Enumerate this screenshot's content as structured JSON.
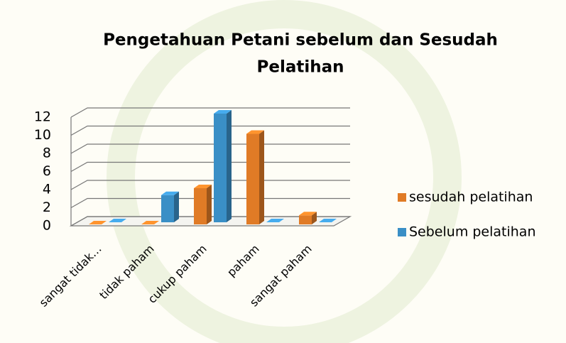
{
  "chart_data": {
    "type": "bar3d",
    "title": "Pengetahuan Petani sebelum dan Sesudah",
    "title_line2": "Pelatihan",
    "categories": [
      "sangat tidak…",
      "tidak paham",
      "cukup paham",
      "paham",
      "sangat paham"
    ],
    "series": [
      {
        "name": "sesudah pelatihan",
        "color": "#e07b26",
        "values": [
          0,
          0,
          4,
          10,
          1
        ]
      },
      {
        "name": "Sebelum pelatihan",
        "color": "#3a8fc6",
        "values": [
          0,
          3,
          12,
          0,
          0
        ]
      }
    ],
    "ylim": [
      0,
      12
    ],
    "yticks": [
      0,
      2,
      4,
      6,
      8,
      10,
      12
    ],
    "grid": true
  }
}
